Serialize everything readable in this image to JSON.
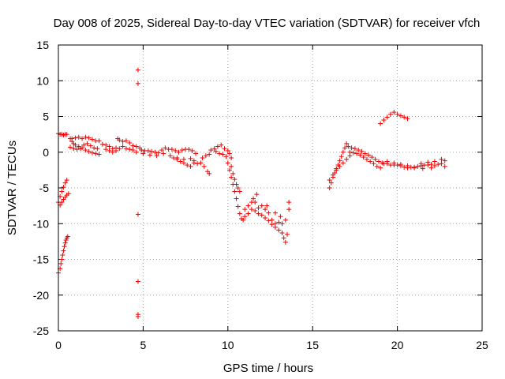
{
  "chart_data": {
    "type": "scatter",
    "title": "Day 008 of 2025, Sidereal Day-to-day VTEC variation (SDTVAR) for receiver vfch",
    "xlabel": "GPS time / hours",
    "ylabel": "SDTVAR / TECUs",
    "xlim": [
      0,
      25
    ],
    "ylim": [
      -25,
      15
    ],
    "xticks": [
      "0",
      "5",
      "10",
      "15",
      "20",
      "25"
    ],
    "yticks": [
      "15",
      "10",
      "5",
      "0",
      "-5",
      "-10",
      "-15",
      "-20",
      "-25"
    ],
    "xtick_values": [
      0,
      5,
      10,
      15,
      20,
      25
    ],
    "ytick_values": [
      15,
      10,
      5,
      0,
      -5,
      -10,
      -15,
      -20,
      -25
    ],
    "grid": true,
    "marker": "+",
    "color": "#ee0000",
    "series": [
      {
        "name": "SDTVAR",
        "points": [
          [
            0.0,
            2.6
          ],
          [
            0.1,
            2.5
          ],
          [
            0.2,
            2.5
          ],
          [
            0.3,
            2.4
          ],
          [
            0.4,
            2.5
          ],
          [
            0.5,
            2.5
          ],
          [
            0.0,
            -7.0
          ],
          [
            0.1,
            -6.2
          ],
          [
            0.2,
            -5.5
          ],
          [
            0.3,
            -4.9
          ],
          [
            0.4,
            -4.3
          ],
          [
            0.5,
            -3.9
          ],
          [
            0.1,
            -7.4
          ],
          [
            0.2,
            -7.0
          ],
          [
            0.3,
            -6.6
          ],
          [
            0.4,
            -6.3
          ],
          [
            0.5,
            -6.0
          ],
          [
            0.6,
            -5.8
          ],
          [
            0.0,
            -16.9
          ],
          [
            0.1,
            -16.3
          ],
          [
            0.15,
            -15.6
          ],
          [
            0.2,
            -15.0
          ],
          [
            0.25,
            -14.4
          ],
          [
            0.3,
            -13.8
          ],
          [
            0.35,
            -13.2
          ],
          [
            0.4,
            -12.7
          ],
          [
            0.45,
            -12.3
          ],
          [
            0.5,
            -12.0
          ],
          [
            0.55,
            -11.8
          ],
          [
            0.7,
            1.9
          ],
          [
            0.8,
            1.5
          ],
          [
            0.9,
            1.2
          ],
          [
            1.0,
            1.0
          ],
          [
            1.2,
            0.8
          ],
          [
            1.4,
            0.6
          ],
          [
            1.6,
            0.3
          ],
          [
            1.8,
            0.1
          ],
          [
            2.0,
            -0.1
          ],
          [
            2.2,
            -0.2
          ],
          [
            2.4,
            -0.3
          ],
          [
            0.7,
            0.7
          ],
          [
            0.9,
            0.5
          ],
          [
            1.1,
            0.4
          ],
          [
            1.3,
            0.5
          ],
          [
            1.5,
            1.0
          ],
          [
            1.7,
            1.2
          ],
          [
            1.9,
            0.9
          ],
          [
            2.1,
            0.6
          ],
          [
            2.3,
            0.5
          ],
          [
            0.8,
            1.9
          ],
          [
            1.0,
            2.0
          ],
          [
            1.2,
            2.1
          ],
          [
            1.4,
            1.9
          ],
          [
            1.6,
            2.1
          ],
          [
            1.8,
            2.0
          ],
          [
            2.0,
            1.8
          ],
          [
            2.2,
            1.6
          ],
          [
            2.4,
            1.6
          ],
          [
            2.6,
            1.1
          ],
          [
            2.8,
            1.0
          ],
          [
            3.0,
            0.8
          ],
          [
            3.2,
            0.5
          ],
          [
            3.4,
            0.6
          ],
          [
            3.6,
            0.5
          ],
          [
            3.8,
            0.8
          ],
          [
            4.0,
            0.5
          ],
          [
            4.2,
            0.4
          ],
          [
            4.4,
            0.3
          ],
          [
            4.6,
            0.0
          ],
          [
            2.8,
            0.4
          ],
          [
            3.0,
            0.2
          ],
          [
            3.2,
            0.0
          ],
          [
            3.4,
            0.2
          ],
          [
            3.5,
            1.9
          ],
          [
            3.6,
            1.7
          ],
          [
            3.8,
            1.5
          ],
          [
            4.0,
            1.6
          ],
          [
            4.2,
            1.3
          ],
          [
            4.4,
            0.9
          ],
          [
            4.6,
            0.8
          ],
          [
            4.8,
            0.6
          ],
          [
            4.7,
            11.5
          ],
          [
            4.7,
            9.6
          ],
          [
            4.7,
            -8.7
          ],
          [
            4.7,
            -18.1
          ],
          [
            4.7,
            -22.7
          ],
          [
            4.7,
            -23.0
          ],
          [
            4.9,
            0.3
          ],
          [
            5.1,
            0.2
          ],
          [
            5.3,
            0.2
          ],
          [
            5.5,
            0.1
          ],
          [
            5.7,
            0.0
          ],
          [
            5.9,
            -0.1
          ],
          [
            6.1,
            0.3
          ],
          [
            6.3,
            0.6
          ],
          [
            6.5,
            0.4
          ],
          [
            6.7,
            0.4
          ],
          [
            6.9,
            0.2
          ],
          [
            7.1,
            0.0
          ],
          [
            7.3,
            0.3
          ],
          [
            7.5,
            0.4
          ],
          [
            7.7,
            0.4
          ],
          [
            7.9,
            0.2
          ],
          [
            8.1,
            -0.2
          ],
          [
            5.0,
            -0.2
          ],
          [
            5.4,
            -0.4
          ],
          [
            5.8,
            -0.5
          ],
          [
            6.2,
            -0.2
          ],
          [
            6.6,
            -0.5
          ],
          [
            7.0,
            -0.8
          ],
          [
            7.4,
            -1.0
          ],
          [
            7.8,
            -0.9
          ],
          [
            8.0,
            -1.2
          ],
          [
            6.8,
            -0.8
          ],
          [
            7.0,
            -1.0
          ],
          [
            7.2,
            -1.3
          ],
          [
            7.4,
            -1.5
          ],
          [
            7.6,
            -1.8
          ],
          [
            7.8,
            -2.0
          ],
          [
            8.0,
            -1.5
          ],
          [
            8.2,
            -1.6
          ],
          [
            8.4,
            -1.5
          ],
          [
            8.6,
            -2.0
          ],
          [
            8.8,
            -2.7
          ],
          [
            8.9,
            -3.0
          ],
          [
            8.5,
            -0.8
          ],
          [
            8.7,
            -0.5
          ],
          [
            8.9,
            -0.3
          ],
          [
            9.0,
            0.3
          ],
          [
            9.2,
            0.5
          ],
          [
            9.4,
            0.8
          ],
          [
            9.6,
            1.0
          ],
          [
            9.8,
            0.5
          ],
          [
            10.0,
            0.2
          ],
          [
            10.1,
            -0.2
          ],
          [
            10.2,
            -0.8
          ],
          [
            9.3,
            0.1
          ],
          [
            9.5,
            -0.2
          ],
          [
            9.7,
            -0.3
          ],
          [
            9.9,
            -0.6
          ],
          [
            10.0,
            -1.5
          ],
          [
            10.1,
            -2.5
          ],
          [
            10.2,
            -3.5
          ],
          [
            10.3,
            -4.5
          ],
          [
            10.4,
            -5.5
          ],
          [
            10.5,
            -6.5
          ],
          [
            10.6,
            -7.6
          ],
          [
            10.7,
            -8.6
          ],
          [
            10.8,
            -9.3
          ],
          [
            10.9,
            -9.5
          ],
          [
            10.2,
            -2.0
          ],
          [
            10.3,
            -3.0
          ],
          [
            10.4,
            -3.8
          ],
          [
            10.5,
            -4.5
          ],
          [
            10.6,
            -5.0
          ],
          [
            10.7,
            -5.5
          ],
          [
            11.0,
            -8.0
          ],
          [
            11.2,
            -7.5
          ],
          [
            11.4,
            -7.0
          ],
          [
            11.6,
            -7.0
          ],
          [
            11.8,
            -7.8
          ],
          [
            12.0,
            -7.5
          ],
          [
            12.2,
            -8.0
          ],
          [
            12.4,
            -8.5
          ],
          [
            12.6,
            -9.5
          ],
          [
            12.8,
            -10.0
          ],
          [
            13.0,
            -9.8
          ],
          [
            13.2,
            -10.0
          ],
          [
            13.4,
            -9.5
          ],
          [
            13.6,
            -8.0
          ],
          [
            13.6,
            -7.0
          ],
          [
            11.0,
            -9.0
          ],
          [
            11.2,
            -8.6
          ],
          [
            11.4,
            -8.0
          ],
          [
            11.6,
            -8.2
          ],
          [
            11.8,
            -8.6
          ],
          [
            12.0,
            -8.8
          ],
          [
            12.2,
            -9.2
          ],
          [
            12.4,
            -9.6
          ],
          [
            12.6,
            -10.1
          ],
          [
            12.8,
            -10.5
          ],
          [
            13.0,
            -10.9
          ],
          [
            13.2,
            -11.3
          ],
          [
            13.3,
            -12.0
          ],
          [
            13.4,
            -12.6
          ],
          [
            13.5,
            -11.5
          ],
          [
            11.5,
            -6.5
          ],
          [
            11.7,
            -5.9
          ],
          [
            12.3,
            -7.5
          ],
          [
            12.8,
            -8.5
          ],
          [
            13.1,
            -9.0
          ],
          [
            16.0,
            -5.0
          ],
          [
            16.1,
            -4.3
          ],
          [
            16.2,
            -3.5
          ],
          [
            16.3,
            -2.9
          ],
          [
            16.4,
            -2.3
          ],
          [
            16.5,
            -1.8
          ],
          [
            16.6,
            -1.2
          ],
          [
            16.7,
            -0.6
          ],
          [
            16.8,
            0.0
          ],
          [
            16.9,
            0.6
          ],
          [
            17.0,
            1.2
          ],
          [
            16.0,
            -3.9
          ],
          [
            16.2,
            -3.2
          ],
          [
            16.4,
            -2.5
          ],
          [
            16.6,
            -2.0
          ],
          [
            16.8,
            -1.5
          ],
          [
            17.0,
            -1.0
          ],
          [
            17.2,
            -0.5
          ],
          [
            17.1,
            0.8
          ],
          [
            17.3,
            0.6
          ],
          [
            17.5,
            0.5
          ],
          [
            17.7,
            0.3
          ],
          [
            17.9,
            0.1
          ],
          [
            18.1,
            -0.2
          ],
          [
            18.3,
            -0.4
          ],
          [
            18.5,
            -0.7
          ],
          [
            18.7,
            -1.0
          ],
          [
            18.9,
            -1.3
          ],
          [
            19.1,
            -1.5
          ],
          [
            17.2,
            0.0
          ],
          [
            17.4,
            -0.1
          ],
          [
            17.6,
            -0.2
          ],
          [
            17.8,
            -0.4
          ],
          [
            18.0,
            -0.7
          ],
          [
            18.2,
            -1.0
          ],
          [
            18.4,
            -1.3
          ],
          [
            18.6,
            -1.6
          ],
          [
            18.8,
            -2.0
          ],
          [
            19.0,
            -2.2
          ],
          [
            19.0,
            4.0
          ],
          [
            19.2,
            4.5
          ],
          [
            19.4,
            4.9
          ],
          [
            19.6,
            5.3
          ],
          [
            19.8,
            5.6
          ],
          [
            20.0,
            5.3
          ],
          [
            20.2,
            5.1
          ],
          [
            20.4,
            4.9
          ],
          [
            20.6,
            4.7
          ],
          [
            19.2,
            -1.6
          ],
          [
            19.4,
            -1.6
          ],
          [
            19.6,
            -1.8
          ],
          [
            19.8,
            -1.8
          ],
          [
            20.0,
            -1.8
          ],
          [
            20.2,
            -1.9
          ],
          [
            20.4,
            -2.1
          ],
          [
            20.6,
            -2.2
          ],
          [
            20.8,
            -2.1
          ],
          [
            21.0,
            -2.1
          ],
          [
            21.2,
            -2.0
          ],
          [
            21.4,
            -1.9
          ],
          [
            21.6,
            -1.8
          ],
          [
            21.8,
            -1.8
          ],
          [
            22.0,
            -1.7
          ],
          [
            22.2,
            -1.9
          ],
          [
            22.4,
            -1.7
          ],
          [
            22.6,
            -1.6
          ],
          [
            22.8,
            -1.2
          ],
          [
            19.4,
            -1.3
          ],
          [
            19.8,
            -1.5
          ],
          [
            20.2,
            -1.7
          ],
          [
            20.6,
            -1.9
          ],
          [
            21.0,
            -2.2
          ],
          [
            21.4,
            -1.6
          ],
          [
            21.8,
            -1.4
          ],
          [
            22.2,
            -1.3
          ],
          [
            22.6,
            -1.0
          ],
          [
            22.8,
            -2.0
          ],
          [
            22.0,
            -2.2
          ],
          [
            21.5,
            -2.3
          ]
        ]
      }
    ]
  }
}
